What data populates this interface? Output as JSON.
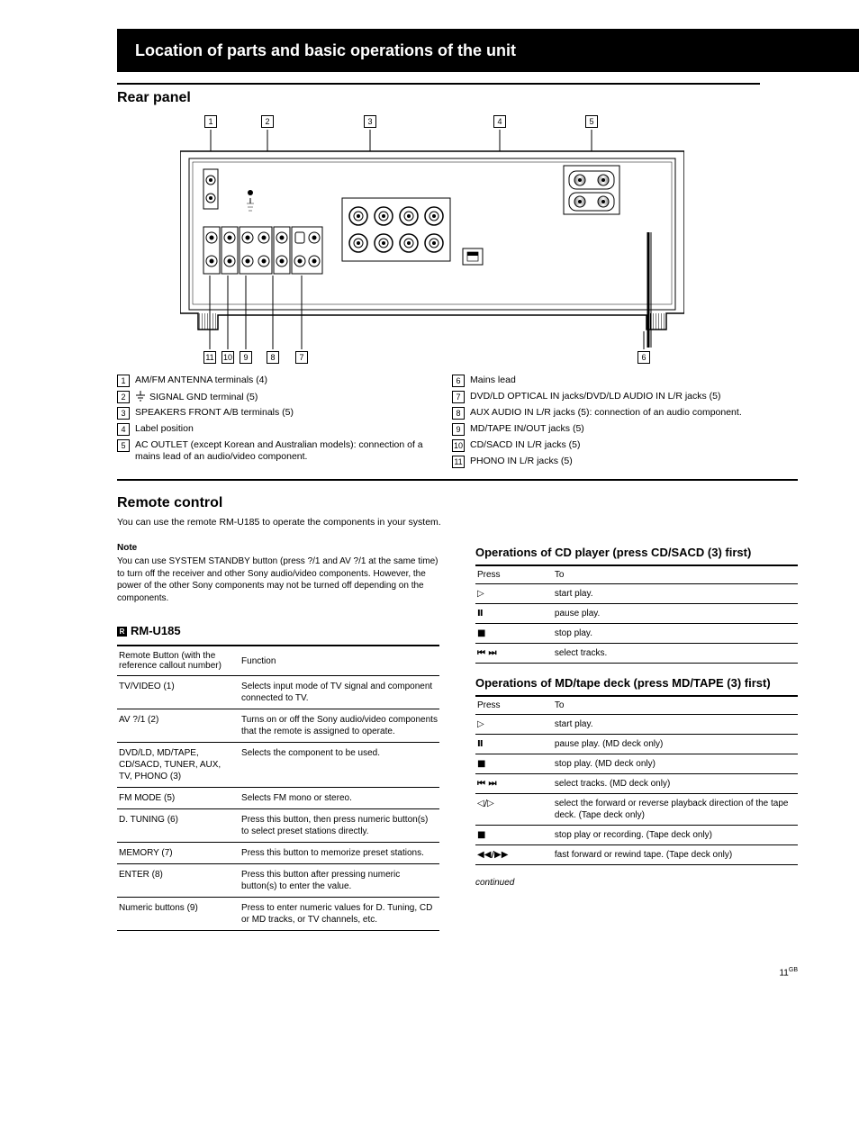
{
  "header": {
    "title": "Location of parts and basic operations of the unit"
  },
  "rear": {
    "title": "Rear panel",
    "legend_left": [
      {
        "n": 1,
        "text": "AM/FM ANTENNA terminals (4)"
      },
      {
        "n": 2,
        "icon": "ground",
        "text": "SIGNAL GND terminal (5)"
      },
      {
        "n": 3,
        "text": "SPEAKERS FRONT A/B terminals (5)"
      },
      {
        "n": 4,
        "text": "Label position"
      },
      {
        "n": 5,
        "text": "AC OUTLET (except Korean and Australian models): connection of a mains lead of an audio/video component."
      }
    ],
    "legend_right": [
      {
        "n": 6,
        "text": "Mains lead"
      },
      {
        "n": 7,
        "text": "DVD/LD OPTICAL IN jacks/DVD/LD AUDIO IN L/R jacks (5)"
      },
      {
        "n": 8,
        "text": "AUX AUDIO IN L/R jacks (5): connection of an audio component."
      },
      {
        "n": 9,
        "text": "MD/TAPE IN/OUT jacks (5)"
      },
      {
        "n": 10,
        "text": "CD/SACD IN L/R jacks (5)"
      },
      {
        "n": 11,
        "text": "PHONO IN L/R jacks (5)"
      }
    ]
  },
  "remote": {
    "title": "Remote control",
    "sub": "You can use the remote RM-U185 to operate the components in your system.",
    "note": {
      "title": "Note",
      "body": "You can use SYSTEM STANDBY button (press ?/1 and AV ?/1 at the same time) to turn off the receiver and other Sony audio/video components. However, the power of the other Sony components may not be turned off depending on the components."
    },
    "remote_box_title": "RM-U185",
    "callout_table": {
      "head": [
        "Remote Button (with the reference callout number)",
        "Function"
      ],
      "rows": [
        [
          "TV/VIDEO (1)",
          "Selects input mode of TV signal and component connected to TV."
        ],
        [
          "AV ?/1 (2)",
          "Turns on or off the Sony audio/video components that the remote is assigned to operate."
        ],
        [
          "DVD/LD, MD/TAPE, CD/SACD, TUNER, AUX, TV, PHONO (3)",
          "Selects the component to be used."
        ],
        [
          "FM MODE (5)",
          "Selects FM mono or stereo."
        ],
        [
          "D. TUNING (6)",
          "Press this button, then press numeric button(s) to select preset stations directly."
        ],
        [
          "MEMORY (7)",
          "Press this button to memorize preset stations."
        ],
        [
          "ENTER (8)",
          "Press this button after pressing numeric button(s) to enter the value."
        ],
        [
          "Numeric buttons (9)",
          "Press to enter numeric values for D. Tuning, CD or MD tracks, or TV channels, etc."
        ]
      ]
    },
    "cd_table": {
      "title": "Operations of CD player (press CD/SACD (3) first)",
      "head": [
        "Press",
        "To"
      ],
      "rows": [
        [
          "play",
          "start play."
        ],
        [
          "pause",
          "pause play."
        ],
        [
          "stop",
          "stop play."
        ],
        [
          "prevnext",
          "select tracks."
        ]
      ]
    },
    "md_table": {
      "title": "Operations of MD/tape deck (press MD/TAPE (3) first)",
      "head": [
        "Press",
        "To"
      ],
      "rows": [
        [
          "play",
          "start play."
        ],
        [
          "pause",
          "pause play. (MD deck only)"
        ],
        [
          "stop",
          "stop play. (MD deck only)"
        ],
        [
          "prevnext",
          "select tracks. (MD deck only)"
        ],
        [
          "leftright",
          "select the forward or reverse playback direction of the tape deck. (Tape deck only)"
        ],
        [
          "stop",
          "stop play or recording. (Tape deck only)"
        ],
        [
          "rewff",
          "fast forward or rewind tape. (Tape deck only)"
        ]
      ]
    },
    "continued": "continued"
  },
  "footer": {
    "page_label": "11",
    "page_suffix": "GB"
  }
}
